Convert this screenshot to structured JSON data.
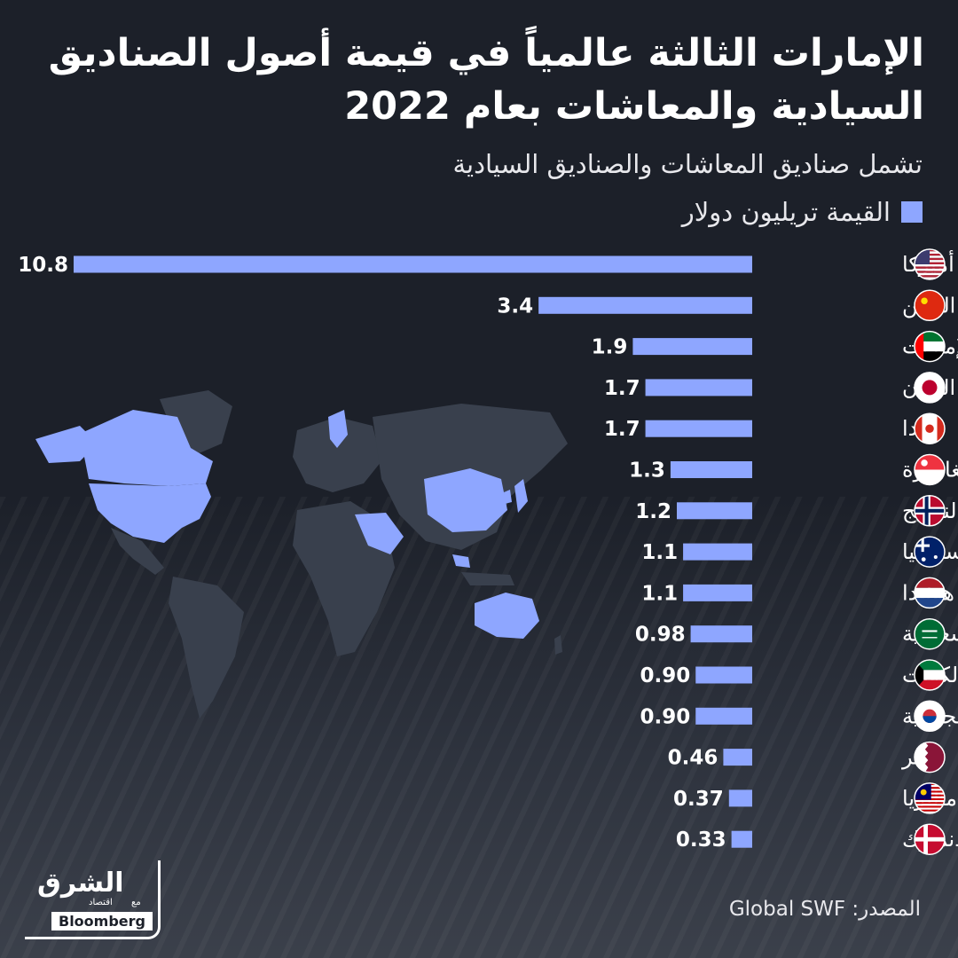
{
  "header": {
    "title": "الإمارات الثالثة عالمياً في قيمة أصول الصناديق السيادية والمعاشات بعام  2022",
    "subtitle": "تشمل صناديق المعاشات والصناديق السيادية"
  },
  "legend": {
    "label": "القيمة تريليون دولار",
    "color": "#8ea6ff"
  },
  "chart_data": {
    "type": "bar",
    "orientation": "horizontal",
    "categories": [
      "أميركا",
      "الصين",
      "الإمارات",
      "اليابان",
      "كندا",
      "سنغافورة",
      "النرويج",
      "أستراليا",
      "هولندا",
      "السعودية",
      "الكويت",
      "كوريا الجنوبية",
      "قطر",
      "ماليزيا",
      "الدنمارك"
    ],
    "values": [
      10.8,
      3.4,
      1.9,
      1.7,
      1.7,
      1.3,
      1.2,
      1.1,
      1.1,
      0.98,
      0.9,
      0.9,
      0.46,
      0.37,
      0.33
    ],
    "value_labels": [
      "10.8",
      "3.4",
      "1.9",
      "1.7",
      "1.7",
      "1.3",
      "1.2",
      "1.1",
      "1.1",
      "0.98",
      "0.90",
      "0.90",
      "0.46",
      "0.37",
      "0.33"
    ],
    "series": [
      {
        "name": "القيمة تريليون دولار",
        "values": [
          10.8,
          3.4,
          1.9,
          1.7,
          1.7,
          1.3,
          1.2,
          1.1,
          1.1,
          0.98,
          0.9,
          0.9,
          0.46,
          0.37,
          0.33
        ]
      }
    ],
    "xlim": [
      0,
      10.8
    ],
    "bar_color": "#8ea6ff",
    "grid": false,
    "flag_icons": [
      "usa-flag-icon",
      "china-flag-icon",
      "uae-flag-icon",
      "japan-flag-icon",
      "canada-flag-icon",
      "singapore-flag-icon",
      "norway-flag-icon",
      "australia-flag-icon",
      "netherlands-flag-icon",
      "saudi-flag-icon",
      "kuwait-flag-icon",
      "south-korea-flag-icon",
      "qatar-flag-icon",
      "malaysia-flag-icon",
      "denmark-flag-icon"
    ]
  },
  "source": {
    "text": "المصدر: Global SWF"
  },
  "logo": {
    "main": "الشرق",
    "sub": "اقتصاد",
    "with": "مع",
    "badge": "Bloomberg"
  },
  "colors": {
    "background": "#1c2029",
    "bar": "#8ea6ff",
    "map_land": "#39404d",
    "map_highlight": "#8ea6ff"
  }
}
